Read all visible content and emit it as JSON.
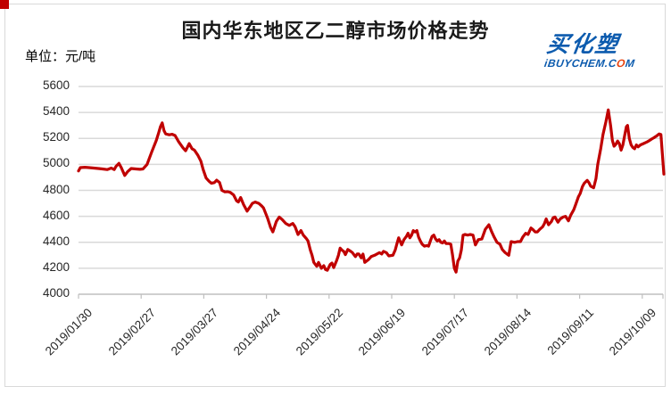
{
  "page": {
    "title": "国内华东地区乙二醇市场价格走势",
    "unit_label": "单位：元/吨"
  },
  "logo": {
    "cn": "买化塑",
    "en_before_o": "iBUYCHEM.C",
    "en_o": "O",
    "en_after_o": "M"
  },
  "colors": {
    "line": "#c00000",
    "grid": "#d9d9d9",
    "axis": "#bfbfbf",
    "corner_accent": "#c00000",
    "text": "#262626",
    "logo_blue": "#0c5bae",
    "logo_orange": "#e8400c"
  },
  "chart_data": {
    "type": "line",
    "title": "国内华东地区乙二醇市场价格走势",
    "ylabel": "元/吨",
    "ylim": [
      4000,
      5600
    ],
    "y_ticks": [
      5600,
      5400,
      5200,
      5000,
      4800,
      4600,
      4400,
      4200,
      4000
    ],
    "x_tick_labels": [
      "2019/01/30",
      "2019/02/27",
      "2019/03/27",
      "2019/04/24",
      "2019/05/22",
      "2019/06/19",
      "2019/07/17",
      "2019/08/14",
      "2019/09/11",
      "2019/10/09"
    ],
    "grid": "horizontal",
    "legend_position": "none",
    "points": [
      [
        0.0,
        4950
      ],
      [
        0.003,
        4975
      ],
      [
        0.011,
        4978
      ],
      [
        0.018,
        4975
      ],
      [
        0.026,
        4972
      ],
      [
        0.034,
        4968
      ],
      [
        0.041,
        4965
      ],
      [
        0.049,
        4960
      ],
      [
        0.056,
        4972
      ],
      [
        0.061,
        4960
      ],
      [
        0.064,
        4985
      ],
      [
        0.069,
        5008
      ],
      [
        0.073,
        4975
      ],
      [
        0.079,
        4915
      ],
      [
        0.084,
        4945
      ],
      [
        0.09,
        4968
      ],
      [
        0.098,
        4965
      ],
      [
        0.105,
        4962
      ],
      [
        0.11,
        4965
      ],
      [
        0.117,
        5000
      ],
      [
        0.125,
        5095
      ],
      [
        0.133,
        5185
      ],
      [
        0.137,
        5245
      ],
      [
        0.14,
        5290
      ],
      [
        0.143,
        5320
      ],
      [
        0.146,
        5260
      ],
      [
        0.149,
        5235
      ],
      [
        0.155,
        5228
      ],
      [
        0.16,
        5232
      ],
      [
        0.165,
        5222
      ],
      [
        0.171,
        5175
      ],
      [
        0.178,
        5130
      ],
      [
        0.183,
        5105
      ],
      [
        0.189,
        5160
      ],
      [
        0.194,
        5120
      ],
      [
        0.198,
        5110
      ],
      [
        0.204,
        5070
      ],
      [
        0.209,
        5025
      ],
      [
        0.213,
        4960
      ],
      [
        0.218,
        4895
      ],
      [
        0.223,
        4870
      ],
      [
        0.227,
        4855
      ],
      [
        0.232,
        4860
      ],
      [
        0.236,
        4878
      ],
      [
        0.241,
        4860
      ],
      [
        0.245,
        4800
      ],
      [
        0.25,
        4788
      ],
      [
        0.255,
        4790
      ],
      [
        0.259,
        4785
      ],
      [
        0.265,
        4765
      ],
      [
        0.27,
        4720
      ],
      [
        0.273,
        4710
      ],
      [
        0.277,
        4745
      ],
      [
        0.282,
        4690
      ],
      [
        0.288,
        4640
      ],
      [
        0.293,
        4672
      ],
      [
        0.297,
        4700
      ],
      [
        0.302,
        4710
      ],
      [
        0.308,
        4700
      ],
      [
        0.313,
        4680
      ],
      [
        0.316,
        4665
      ],
      [
        0.32,
        4620
      ],
      [
        0.323,
        4585
      ],
      [
        0.328,
        4515
      ],
      [
        0.332,
        4480
      ],
      [
        0.338,
        4560
      ],
      [
        0.343,
        4595
      ],
      [
        0.348,
        4575
      ],
      [
        0.354,
        4545
      ],
      [
        0.36,
        4530
      ],
      [
        0.366,
        4545
      ],
      [
        0.37,
        4520
      ],
      [
        0.375,
        4460
      ],
      [
        0.38,
        4490
      ],
      [
        0.384,
        4455
      ],
      [
        0.389,
        4430
      ],
      [
        0.392,
        4410
      ],
      [
        0.396,
        4340
      ],
      [
        0.399,
        4300
      ],
      [
        0.402,
        4245
      ],
      [
        0.407,
        4215
      ],
      [
        0.41,
        4245
      ],
      [
        0.415,
        4200
      ],
      [
        0.419,
        4220
      ],
      [
        0.422,
        4190
      ],
      [
        0.425,
        4185
      ],
      [
        0.43,
        4230
      ],
      [
        0.433,
        4240
      ],
      [
        0.436,
        4205
      ],
      [
        0.441,
        4260
      ],
      [
        0.444,
        4300
      ],
      [
        0.447,
        4355
      ],
      [
        0.45,
        4340
      ],
      [
        0.453,
        4330
      ],
      [
        0.456,
        4305
      ],
      [
        0.46,
        4345
      ],
      [
        0.465,
        4330
      ],
      [
        0.468,
        4320
      ],
      [
        0.473,
        4290
      ],
      [
        0.476,
        4310
      ],
      [
        0.479,
        4310
      ],
      [
        0.483,
        4280
      ],
      [
        0.486,
        4310
      ],
      [
        0.489,
        4245
      ],
      [
        0.495,
        4265
      ],
      [
        0.5,
        4290
      ],
      [
        0.506,
        4300
      ],
      [
        0.514,
        4320
      ],
      [
        0.518,
        4310
      ],
      [
        0.521,
        4330
      ],
      [
        0.526,
        4320
      ],
      [
        0.53,
        4295
      ],
      [
        0.537,
        4300
      ],
      [
        0.541,
        4340
      ],
      [
        0.544,
        4390
      ],
      [
        0.547,
        4435
      ],
      [
        0.552,
        4380
      ],
      [
        0.556,
        4420
      ],
      [
        0.56,
        4445
      ],
      [
        0.563,
        4470
      ],
      [
        0.566,
        4435
      ],
      [
        0.569,
        4455
      ],
      [
        0.572,
        4490
      ],
      [
        0.575,
        4480
      ],
      [
        0.578,
        4490
      ],
      [
        0.581,
        4440
      ],
      [
        0.584,
        4410
      ],
      [
        0.587,
        4385
      ],
      [
        0.591,
        4370
      ],
      [
        0.595,
        4375
      ],
      [
        0.598,
        4370
      ],
      [
        0.601,
        4410
      ],
      [
        0.604,
        4445
      ],
      [
        0.607,
        4455
      ],
      [
        0.61,
        4425
      ],
      [
        0.613,
        4410
      ],
      [
        0.616,
        4420
      ],
      [
        0.619,
        4400
      ],
      [
        0.622,
        4395
      ],
      [
        0.625,
        4410
      ],
      [
        0.628,
        4390
      ],
      [
        0.633,
        4390
      ],
      [
        0.636,
        4385
      ],
      [
        0.639,
        4300
      ],
      [
        0.642,
        4200
      ],
      [
        0.645,
        4170
      ],
      [
        0.648,
        4255
      ],
      [
        0.651,
        4280
      ],
      [
        0.654,
        4340
      ],
      [
        0.657,
        4455
      ],
      [
        0.66,
        4460
      ],
      [
        0.665,
        4455
      ],
      [
        0.669,
        4460
      ],
      [
        0.674,
        4455
      ],
      [
        0.678,
        4380
      ],
      [
        0.683,
        4420
      ],
      [
        0.689,
        4425
      ],
      [
        0.695,
        4500
      ],
      [
        0.701,
        4535
      ],
      [
        0.706,
        4480
      ],
      [
        0.71,
        4440
      ],
      [
        0.715,
        4400
      ],
      [
        0.72,
        4385
      ],
      [
        0.724,
        4345
      ],
      [
        0.729,
        4320
      ],
      [
        0.732,
        4310
      ],
      [
        0.735,
        4300
      ],
      [
        0.739,
        4405
      ],
      [
        0.745,
        4400
      ],
      [
        0.75,
        4405
      ],
      [
        0.755,
        4405
      ],
      [
        0.759,
        4440
      ],
      [
        0.764,
        4470
      ],
      [
        0.768,
        4460
      ],
      [
        0.773,
        4510
      ],
      [
        0.777,
        4495
      ],
      [
        0.78,
        4480
      ],
      [
        0.784,
        4480
      ],
      [
        0.788,
        4500
      ],
      [
        0.793,
        4520
      ],
      [
        0.796,
        4545
      ],
      [
        0.799,
        4580
      ],
      [
        0.803,
        4535
      ],
      [
        0.808,
        4560
      ],
      [
        0.811,
        4590
      ],
      [
        0.814,
        4595
      ],
      [
        0.819,
        4555
      ],
      [
        0.823,
        4580
      ],
      [
        0.828,
        4595
      ],
      [
        0.832,
        4600
      ],
      [
        0.837,
        4565
      ],
      [
        0.841,
        4610
      ],
      [
        0.846,
        4650
      ],
      [
        0.849,
        4685
      ],
      [
        0.854,
        4750
      ],
      [
        0.857,
        4775
      ],
      [
        0.861,
        4830
      ],
      [
        0.864,
        4855
      ],
      [
        0.869,
        4877
      ],
      [
        0.872,
        4860
      ],
      [
        0.875,
        4832
      ],
      [
        0.88,
        4820
      ],
      [
        0.884,
        4890
      ],
      [
        0.887,
        5000
      ],
      [
        0.892,
        5120
      ],
      [
        0.896,
        5230
      ],
      [
        0.901,
        5330
      ],
      [
        0.905,
        5420
      ],
      [
        0.909,
        5300
      ],
      [
        0.912,
        5185
      ],
      [
        0.915,
        5140
      ],
      [
        0.918,
        5155
      ],
      [
        0.921,
        5180
      ],
      [
        0.924,
        5160
      ],
      [
        0.927,
        5110
      ],
      [
        0.93,
        5150
      ],
      [
        0.933,
        5220
      ],
      [
        0.936,
        5290
      ],
      [
        0.938,
        5300
      ],
      [
        0.941,
        5200
      ],
      [
        0.944,
        5150
      ],
      [
        0.947,
        5130
      ],
      [
        0.95,
        5120
      ],
      [
        0.953,
        5150
      ],
      [
        0.956,
        5135
      ],
      [
        0.96,
        5150
      ],
      [
        0.965,
        5160
      ],
      [
        0.97,
        5170
      ],
      [
        0.974,
        5180
      ],
      [
        0.979,
        5195
      ],
      [
        0.983,
        5205
      ],
      [
        0.988,
        5220
      ],
      [
        0.992,
        5235
      ],
      [
        0.995,
        5230
      ],
      [
        1.0,
        4925
      ]
    ]
  }
}
